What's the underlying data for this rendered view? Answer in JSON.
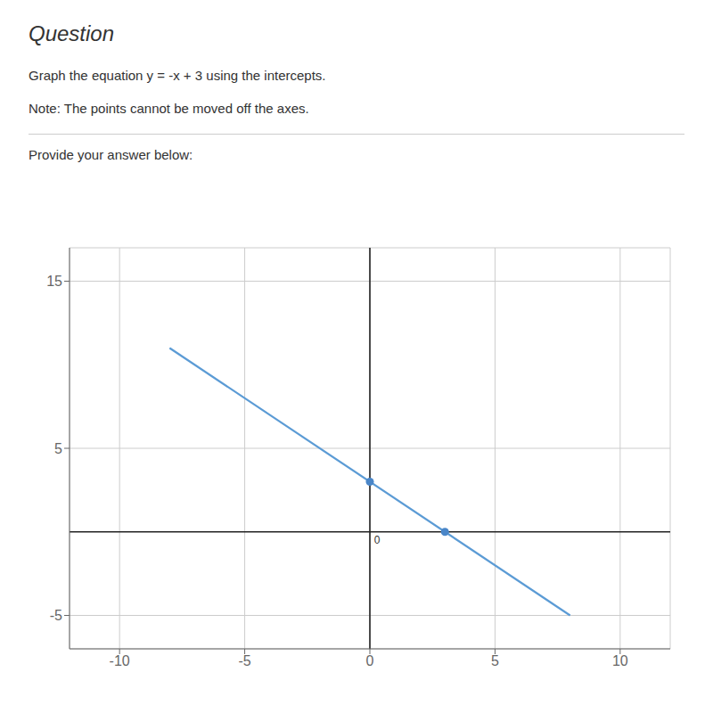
{
  "chart_data": {
    "type": "line",
    "title": "Question",
    "annotations": [
      {
        "text": "Graph the equation y = -x + 3 using the intercepts."
      },
      {
        "text": "Note: The points cannot be moved off the axes."
      },
      {
        "text": "Provide your answer below:"
      },
      {
        "text": "0",
        "x": 0,
        "y": 0
      }
    ],
    "series": [
      {
        "type": "line",
        "color": "#5b9bd5",
        "x": [
          -8,
          8
        ],
        "values": [
          11,
          -5
        ]
      },
      {
        "type": "scatter",
        "color": "#4a86c8",
        "x": [
          3,
          0
        ],
        "values": [
          0,
          3
        ]
      }
    ],
    "xlim": [
      -12,
      12
    ],
    "xticks": [
      -10,
      -5,
      0,
      5,
      10
    ],
    "ylim": [
      -7,
      17
    ],
    "yticks": [
      -5,
      5,
      15
    ],
    "grid": true
  }
}
